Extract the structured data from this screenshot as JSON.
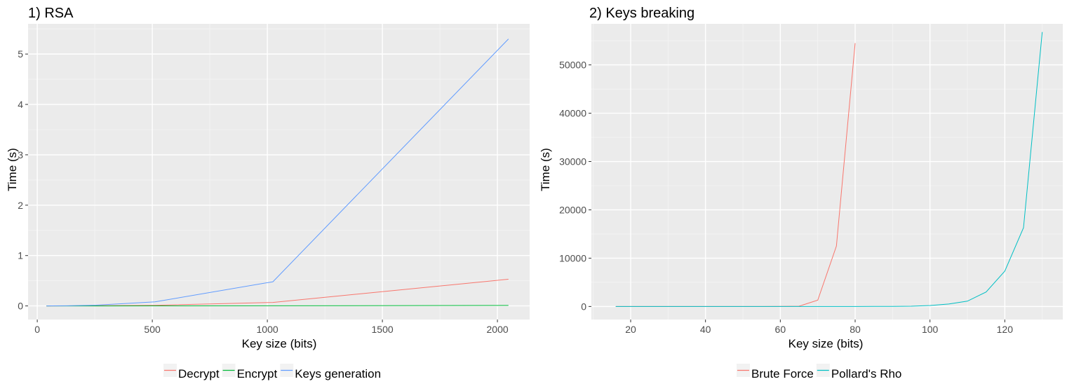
{
  "chart_data": [
    {
      "type": "line",
      "title": "1) RSA",
      "xlabel": "Key size (bits)",
      "ylabel": "Time (s)",
      "xlim": [
        -40,
        2140
      ],
      "ylim": [
        -0.27,
        5.6
      ],
      "xticks": [
        0,
        500,
        1000,
        1500,
        2000
      ],
      "xtick_labels": [
        "0",
        "500",
        "1000",
        "1500",
        "2000"
      ],
      "yticks": [
        0,
        1,
        2,
        3,
        4,
        5
      ],
      "ytick_labels": [
        "0",
        "1",
        "2",
        "3",
        "4",
        "5"
      ],
      "grid": true,
      "background": "#ebebeb",
      "legend_position": "bottom",
      "series": [
        {
          "name": "Decrypt",
          "color": "#f8766d",
          "x": [
            40,
            64,
            128,
            256,
            512,
            1024,
            2048
          ],
          "y": [
            0.0,
            0.0,
            0.001,
            0.004,
            0.012,
            0.07,
            0.53
          ]
        },
        {
          "name": "Encrypt",
          "color": "#00ba38",
          "x": [
            40,
            64,
            128,
            256,
            512,
            1024,
            2048
          ],
          "y": [
            0.0,
            0.0,
            0.0,
            0.0,
            0.001,
            0.003,
            0.01
          ]
        },
        {
          "name": "Keys generation",
          "color": "#619cff",
          "x": [
            40,
            64,
            128,
            256,
            512,
            1024,
            2048
          ],
          "y": [
            0.0,
            0.001,
            0.003,
            0.015,
            0.08,
            0.48,
            5.3
          ]
        }
      ]
    },
    {
      "type": "line",
      "title": "2) Keys breaking",
      "xlabel": "Key size (bits)",
      "ylabel": "Time (s)",
      "xlim": [
        9.5,
        135.5
      ],
      "ylim": [
        -2700,
        58500
      ],
      "xticks": [
        20,
        40,
        60,
        80,
        100,
        120
      ],
      "xtick_labels": [
        "20",
        "40",
        "60",
        "80",
        "100",
        "120"
      ],
      "yticks": [
        0,
        10000,
        20000,
        30000,
        40000,
        50000
      ],
      "ytick_labels": [
        "0",
        "10000",
        "20000",
        "30000",
        "40000",
        "50000"
      ],
      "grid": true,
      "background": "#ebebeb",
      "legend_position": "bottom",
      "series": [
        {
          "name": "Brute Force",
          "color": "#f8766d",
          "x": [
            16,
            20,
            30,
            40,
            50,
            55,
            60,
            65,
            70,
            75,
            80
          ],
          "y": [
            0,
            0,
            0,
            0,
            0,
            0,
            10,
            60,
            1300,
            12500,
            54500
          ]
        },
        {
          "name": "Pollard's Rho",
          "color": "#00bfc4",
          "x": [
            16,
            20,
            30,
            40,
            50,
            60,
            70,
            80,
            85,
            90,
            95,
            100,
            105,
            110,
            115,
            120,
            125,
            130
          ],
          "y": [
            0,
            0,
            0,
            0,
            0,
            0,
            0,
            0,
            5,
            20,
            50,
            200,
            500,
            1100,
            3000,
            7300,
            16300,
            56800
          ]
        }
      ]
    }
  ]
}
